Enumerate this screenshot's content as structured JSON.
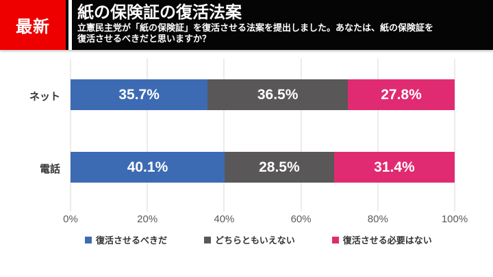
{
  "badge": {
    "label": "最新"
  },
  "header": {
    "title": "紙の保険証の復活法案",
    "subtitle_line1": "立憲民主党が「紙の保険証」を復活させる法案を提出しました。あなたは、紙の保険証を",
    "subtitle_line2": "復活させるべきだと思いますか？"
  },
  "colors": {
    "badge_red": "#ee0000",
    "header_black": "#050505",
    "blue": "#3d6bb3",
    "gray": "#595757",
    "pink": "#e02b72",
    "grid": "#ebebeb",
    "tick_text": "#595959",
    "label_text": "#333333"
  },
  "chart_data": {
    "type": "bar",
    "orientation": "horizontal",
    "stacked": true,
    "title": "紙の保険証の復活法案",
    "categories": [
      "ネット",
      "電話"
    ],
    "series": [
      {
        "name": "復活させるべきだ",
        "color": "#3d6bb3",
        "values": [
          35.7,
          40.1
        ]
      },
      {
        "name": "どちらともいえない",
        "color": "#595757",
        "values": [
          36.5,
          28.5
        ]
      },
      {
        "name": "復活させる必要はない",
        "color": "#e02b72",
        "values": [
          27.8,
          31.4
        ]
      }
    ],
    "x_ticks": [
      "0%",
      "20%",
      "40%",
      "60%",
      "80%",
      "100%"
    ],
    "xlim": [
      0,
      100
    ],
    "value_suffix": "%",
    "grid": true,
    "legend_position": "bottom"
  }
}
